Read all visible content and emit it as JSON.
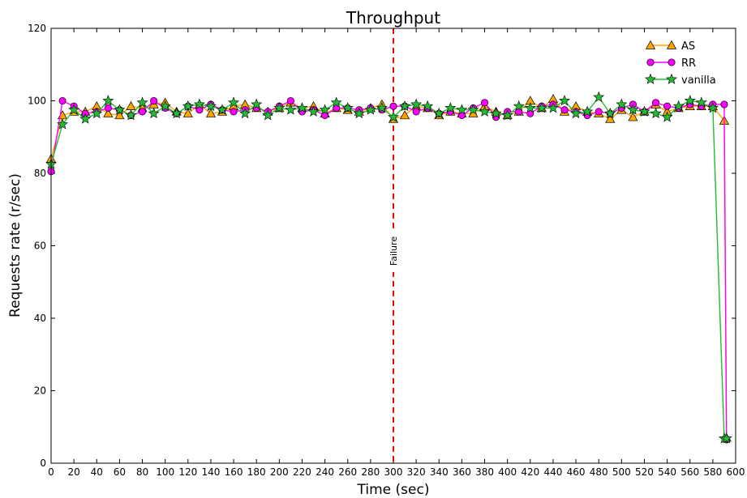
{
  "chart_data": {
    "type": "line",
    "title": "Throughput",
    "xlabel": "Time (sec)",
    "ylabel": "Requests rate (r/sec)",
    "xlim": [
      0,
      600
    ],
    "ylim": [
      0,
      120
    ],
    "xticks": [
      0,
      20,
      40,
      60,
      80,
      100,
      120,
      140,
      160,
      180,
      200,
      220,
      240,
      260,
      280,
      300,
      320,
      340,
      360,
      380,
      400,
      420,
      440,
      460,
      480,
      500,
      520,
      540,
      560,
      580,
      600
    ],
    "yticks": [
      0,
      20,
      40,
      60,
      80,
      100,
      120
    ],
    "grid": false,
    "legend_position": "top-right",
    "annotations": [
      {
        "type": "vline",
        "x": 300,
        "label": "Failure",
        "color": "#ff0000",
        "style": "dashed"
      }
    ],
    "x": [
      0,
      10,
      20,
      30,
      40,
      50,
      60,
      70,
      80,
      90,
      100,
      110,
      120,
      130,
      140,
      150,
      160,
      170,
      180,
      190,
      200,
      210,
      220,
      230,
      240,
      250,
      260,
      270,
      280,
      290,
      300,
      310,
      320,
      330,
      340,
      350,
      360,
      370,
      380,
      390,
      400,
      410,
      420,
      430,
      440,
      450,
      460,
      470,
      480,
      490,
      500,
      510,
      520,
      530,
      540,
      550,
      560,
      570,
      580,
      590,
      592
    ],
    "series": [
      {
        "name": "AS",
        "color": "#ffa500",
        "marker": "triangle",
        "values": [
          84,
          96,
          97,
          97,
          98.5,
          96.5,
          96,
          98.5,
          98,
          99,
          99.5,
          97,
          96.5,
          99,
          96.5,
          97,
          98.5,
          99,
          98,
          97,
          98,
          99.5,
          98,
          98.5,
          96.5,
          98,
          97.5,
          97,
          98,
          99,
          95,
          96,
          98.5,
          98,
          96,
          97,
          96.5,
          96.5,
          98.5,
          97,
          96,
          97,
          100,
          98,
          100.5,
          97,
          98.5,
          97,
          96.5,
          95,
          97.5,
          95.5,
          97,
          99,
          97,
          98,
          98.5,
          98.5,
          98.5,
          94.5,
          7
        ]
      },
      {
        "name": "RR",
        "color": "#ff00ff",
        "marker": "circle",
        "values": [
          80.5,
          100,
          98.5,
          96.5,
          97,
          98,
          97.5,
          96,
          97,
          100,
          98,
          96.5,
          98.5,
          97.5,
          99,
          97.5,
          97,
          97.5,
          98,
          97,
          98.5,
          100,
          97,
          97.5,
          96,
          98,
          98,
          97.5,
          98,
          97.5,
          98.5,
          98.5,
          97,
          98,
          96.5,
          97,
          96,
          98,
          99.5,
          95.5,
          97,
          97,
          96.5,
          98.5,
          99,
          97.5,
          97,
          96,
          97,
          96.5,
          98,
          99,
          97,
          99.5,
          98.5,
          98,
          99,
          98.5,
          99,
          99,
          6.5
        ]
      },
      {
        "name": "vanilla",
        "color": "#22bb33",
        "marker": "star",
        "values": [
          82.5,
          93.5,
          97.5,
          95,
          96.5,
          100,
          97.5,
          96,
          99.5,
          96.5,
          98.5,
          96.5,
          98.5,
          99,
          98.5,
          97.5,
          99.5,
          96.5,
          99,
          96,
          98,
          97.5,
          98,
          97,
          97.5,
          99.5,
          98,
          96.5,
          97.5,
          98,
          95.5,
          98.5,
          99,
          98.5,
          96.5,
          98,
          97.5,
          97.5,
          97,
          96.5,
          96,
          98.5,
          98,
          98,
          98,
          100,
          96.5,
          97,
          101,
          96.5,
          99,
          97.5,
          97,
          96.5,
          95.5,
          98.5,
          100,
          99.5,
          98,
          6.8,
          6.8
        ]
      }
    ]
  }
}
